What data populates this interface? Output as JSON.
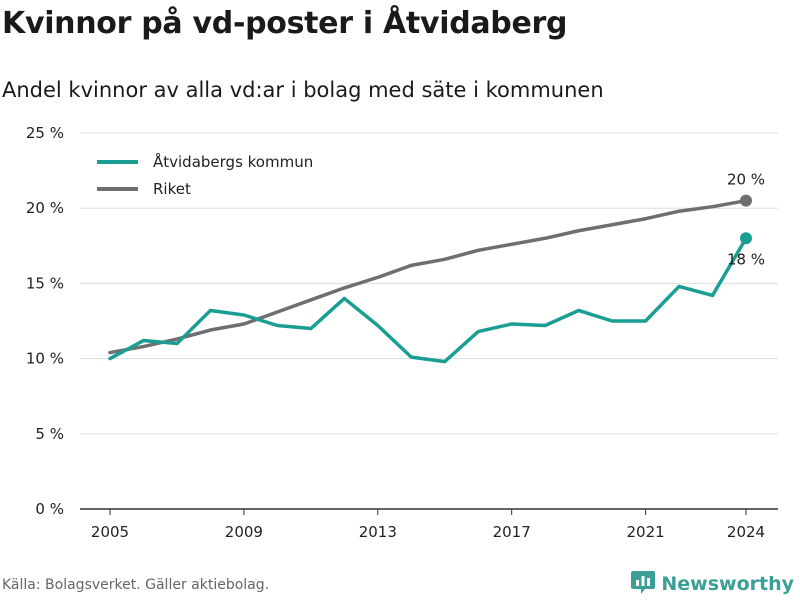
{
  "header": {
    "title": "Kvinnor på vd-poster i Åtvidaberg",
    "subtitle": "Andel kvinnor av alla vd:ar i bolag med säte i kommunen"
  },
  "footer": {
    "source": "Källa: Bolagsverket. Gäller aktiebolag.",
    "brand": "Newsworthy",
    "brand_icon": "bar-chart-icon",
    "brand_color": "#3a9f96"
  },
  "chart_data": {
    "type": "line",
    "x": [
      2005,
      2006,
      2007,
      2008,
      2009,
      2010,
      2011,
      2012,
      2013,
      2014,
      2015,
      2016,
      2017,
      2018,
      2019,
      2020,
      2021,
      2022,
      2023,
      2024
    ],
    "series": [
      {
        "name": "Åtvidabergs kommun",
        "color": "#1a9e93",
        "values": [
          10.0,
          11.2,
          11.0,
          13.2,
          12.9,
          12.2,
          12.0,
          14.0,
          12.2,
          10.1,
          9.8,
          11.8,
          12.3,
          12.2,
          13.2,
          12.5,
          12.5,
          14.8,
          14.2,
          18.0
        ],
        "end_label": "18 %"
      },
      {
        "name": "Riket",
        "color": "#6e6e73",
        "values": [
          10.4,
          10.8,
          11.3,
          11.9,
          12.3,
          13.1,
          13.9,
          14.7,
          15.4,
          16.2,
          16.6,
          17.2,
          17.6,
          18.0,
          18.5,
          18.9,
          19.3,
          19.8,
          20.1,
          20.5
        ],
        "end_label": "20 %"
      }
    ],
    "x_ticks": [
      2005,
      2009,
      2013,
      2017,
      2021,
      2024
    ],
    "x_tick_labels": [
      "2005",
      "2009",
      "2013",
      "2017",
      "2021",
      "2024"
    ],
    "y_ticks": [
      0,
      5,
      10,
      15,
      20,
      25
    ],
    "y_tick_labels": [
      "0 %",
      "5 %",
      "10 %",
      "15 %",
      "20 %",
      "25 %"
    ],
    "ylim": [
      0,
      25
    ],
    "xlim": [
      2005,
      2024
    ],
    "grid": true,
    "legend_position": "top-left",
    "title": "Kvinnor på vd-poster i Åtvidaberg",
    "subtitle": "Andel kvinnor av alla vd:ar i bolag med säte i kommunen"
  }
}
